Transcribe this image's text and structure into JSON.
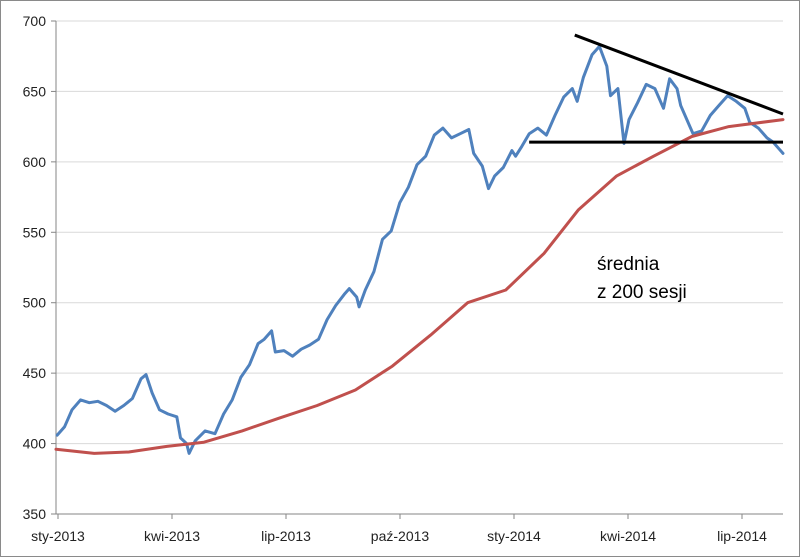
{
  "chart_data": {
    "type": "line",
    "title": "",
    "xlabel": "",
    "ylabel": "",
    "ylim": [
      350,
      700
    ],
    "y_ticks": [
      350,
      400,
      450,
      500,
      550,
      600,
      650,
      700
    ],
    "x_ticks": [
      "sty-2013",
      "kwi-2013",
      "lip-2013",
      "paź-2013",
      "sty-2014",
      "kwi-2014",
      "lip-2014"
    ],
    "grid": {
      "horizontal": true,
      "vertical": false
    },
    "legend": "none",
    "series": [
      {
        "key": "price",
        "color": "#4f81bd",
        "points": [
          [
            "2013-01-02",
            406
          ],
          [
            "2013-01-08",
            412
          ],
          [
            "2013-01-14",
            424
          ],
          [
            "2013-01-21",
            431
          ],
          [
            "2013-01-28",
            429
          ],
          [
            "2013-02-04",
            430
          ],
          [
            "2013-02-11",
            427
          ],
          [
            "2013-02-18",
            423
          ],
          [
            "2013-02-25",
            427
          ],
          [
            "2013-03-04",
            432
          ],
          [
            "2013-03-11",
            446
          ],
          [
            "2013-03-15",
            449
          ],
          [
            "2013-03-20",
            436
          ],
          [
            "2013-03-26",
            424
          ],
          [
            "2013-04-02",
            421
          ],
          [
            "2013-04-09",
            419
          ],
          [
            "2013-04-12",
            404
          ],
          [
            "2013-04-17",
            400
          ],
          [
            "2013-04-19",
            393
          ],
          [
            "2013-04-24",
            402
          ],
          [
            "2013-05-02",
            409
          ],
          [
            "2013-05-10",
            407
          ],
          [
            "2013-05-17",
            421
          ],
          [
            "2013-05-24",
            431
          ],
          [
            "2013-05-31",
            447
          ],
          [
            "2013-06-07",
            456
          ],
          [
            "2013-06-14",
            471
          ],
          [
            "2013-06-19",
            474
          ],
          [
            "2013-06-25",
            480
          ],
          [
            "2013-06-28",
            465
          ],
          [
            "2013-07-05",
            466
          ],
          [
            "2013-07-12",
            462
          ],
          [
            "2013-07-19",
            467
          ],
          [
            "2013-07-26",
            470
          ],
          [
            "2013-08-02",
            474
          ],
          [
            "2013-08-09",
            488
          ],
          [
            "2013-08-16",
            498
          ],
          [
            "2013-08-23",
            506
          ],
          [
            "2013-08-27",
            510
          ],
          [
            "2013-09-02",
            504
          ],
          [
            "2013-09-04",
            497
          ],
          [
            "2013-09-09",
            509
          ],
          [
            "2013-09-16",
            522
          ],
          [
            "2013-09-23",
            545
          ],
          [
            "2013-09-30",
            551
          ],
          [
            "2013-10-07",
            571
          ],
          [
            "2013-10-14",
            582
          ],
          [
            "2013-10-21",
            598
          ],
          [
            "2013-10-28",
            604
          ],
          [
            "2013-11-04",
            619
          ],
          [
            "2013-11-11",
            624
          ],
          [
            "2013-11-18",
            617
          ],
          [
            "2013-11-25",
            620
          ],
          [
            "2013-12-02",
            623
          ],
          [
            "2013-12-06",
            606
          ],
          [
            "2013-12-13",
            597
          ],
          [
            "2013-12-18",
            581
          ],
          [
            "2013-12-23",
            590
          ],
          [
            "2013-12-30",
            596
          ],
          [
            "2014-01-06",
            608
          ],
          [
            "2014-01-09",
            604
          ],
          [
            "2014-01-14",
            611
          ],
          [
            "2014-01-20",
            620
          ],
          [
            "2014-01-27",
            624
          ],
          [
            "2014-02-03",
            619
          ],
          [
            "2014-02-10",
            633
          ],
          [
            "2014-02-17",
            646
          ],
          [
            "2014-02-24",
            652
          ],
          [
            "2014-02-28",
            643
          ],
          [
            "2014-03-05",
            660
          ],
          [
            "2014-03-12",
            676
          ],
          [
            "2014-03-18",
            682
          ],
          [
            "2014-03-24",
            668
          ],
          [
            "2014-03-27",
            647
          ],
          [
            "2014-04-02",
            652
          ],
          [
            "2014-04-07",
            613
          ],
          [
            "2014-04-11",
            630
          ],
          [
            "2014-04-18",
            642
          ],
          [
            "2014-04-25",
            655
          ],
          [
            "2014-05-02",
            652
          ],
          [
            "2014-05-09",
            638
          ],
          [
            "2014-05-14",
            659
          ],
          [
            "2014-05-20",
            652
          ],
          [
            "2014-05-23",
            640
          ],
          [
            "2014-06-02",
            620
          ],
          [
            "2014-06-09",
            622
          ],
          [
            "2014-06-16",
            633
          ],
          [
            "2014-06-23",
            640
          ],
          [
            "2014-06-30",
            647
          ],
          [
            "2014-07-07",
            643
          ],
          [
            "2014-07-14",
            638
          ],
          [
            "2014-07-18",
            628
          ],
          [
            "2014-07-25",
            624
          ],
          [
            "2014-08-01",
            617
          ],
          [
            "2014-08-06",
            614
          ],
          [
            "2014-08-11",
            609
          ],
          [
            "2014-08-14",
            606
          ]
        ]
      },
      {
        "key": "sma200",
        "name": "średnia z 200 sesji",
        "color": "#c0504d",
        "points": [
          [
            "2013-01-01",
            396
          ],
          [
            "2013-02-01",
            393
          ],
          [
            "2013-03-01",
            394
          ],
          [
            "2013-04-01",
            398
          ],
          [
            "2013-05-01",
            401
          ],
          [
            "2013-06-01",
            409
          ],
          [
            "2013-07-01",
            418
          ],
          [
            "2013-08-01",
            427
          ],
          [
            "2013-09-01",
            438
          ],
          [
            "2013-10-01",
            455
          ],
          [
            "2013-11-01",
            477
          ],
          [
            "2013-12-01",
            500
          ],
          [
            "2014-01-01",
            509
          ],
          [
            "2014-02-01",
            535
          ],
          [
            "2014-03-01",
            566
          ],
          [
            "2014-04-01",
            590
          ],
          [
            "2014-05-01",
            604
          ],
          [
            "2014-06-01",
            618
          ],
          [
            "2014-07-01",
            625
          ],
          [
            "2014-08-14",
            630
          ]
        ]
      }
    ],
    "annotations": {
      "sma_label_lines": [
        "średnia",
        "z 200 sesji"
      ],
      "trendline_upper": {
        "from": [
          "2014-02-26",
          690
        ],
        "to": [
          "2014-08-14",
          634
        ]
      },
      "trendline_lower": {
        "from": [
          "2014-01-20",
          614
        ],
        "to": [
          "2014-08-14",
          614
        ]
      }
    }
  }
}
